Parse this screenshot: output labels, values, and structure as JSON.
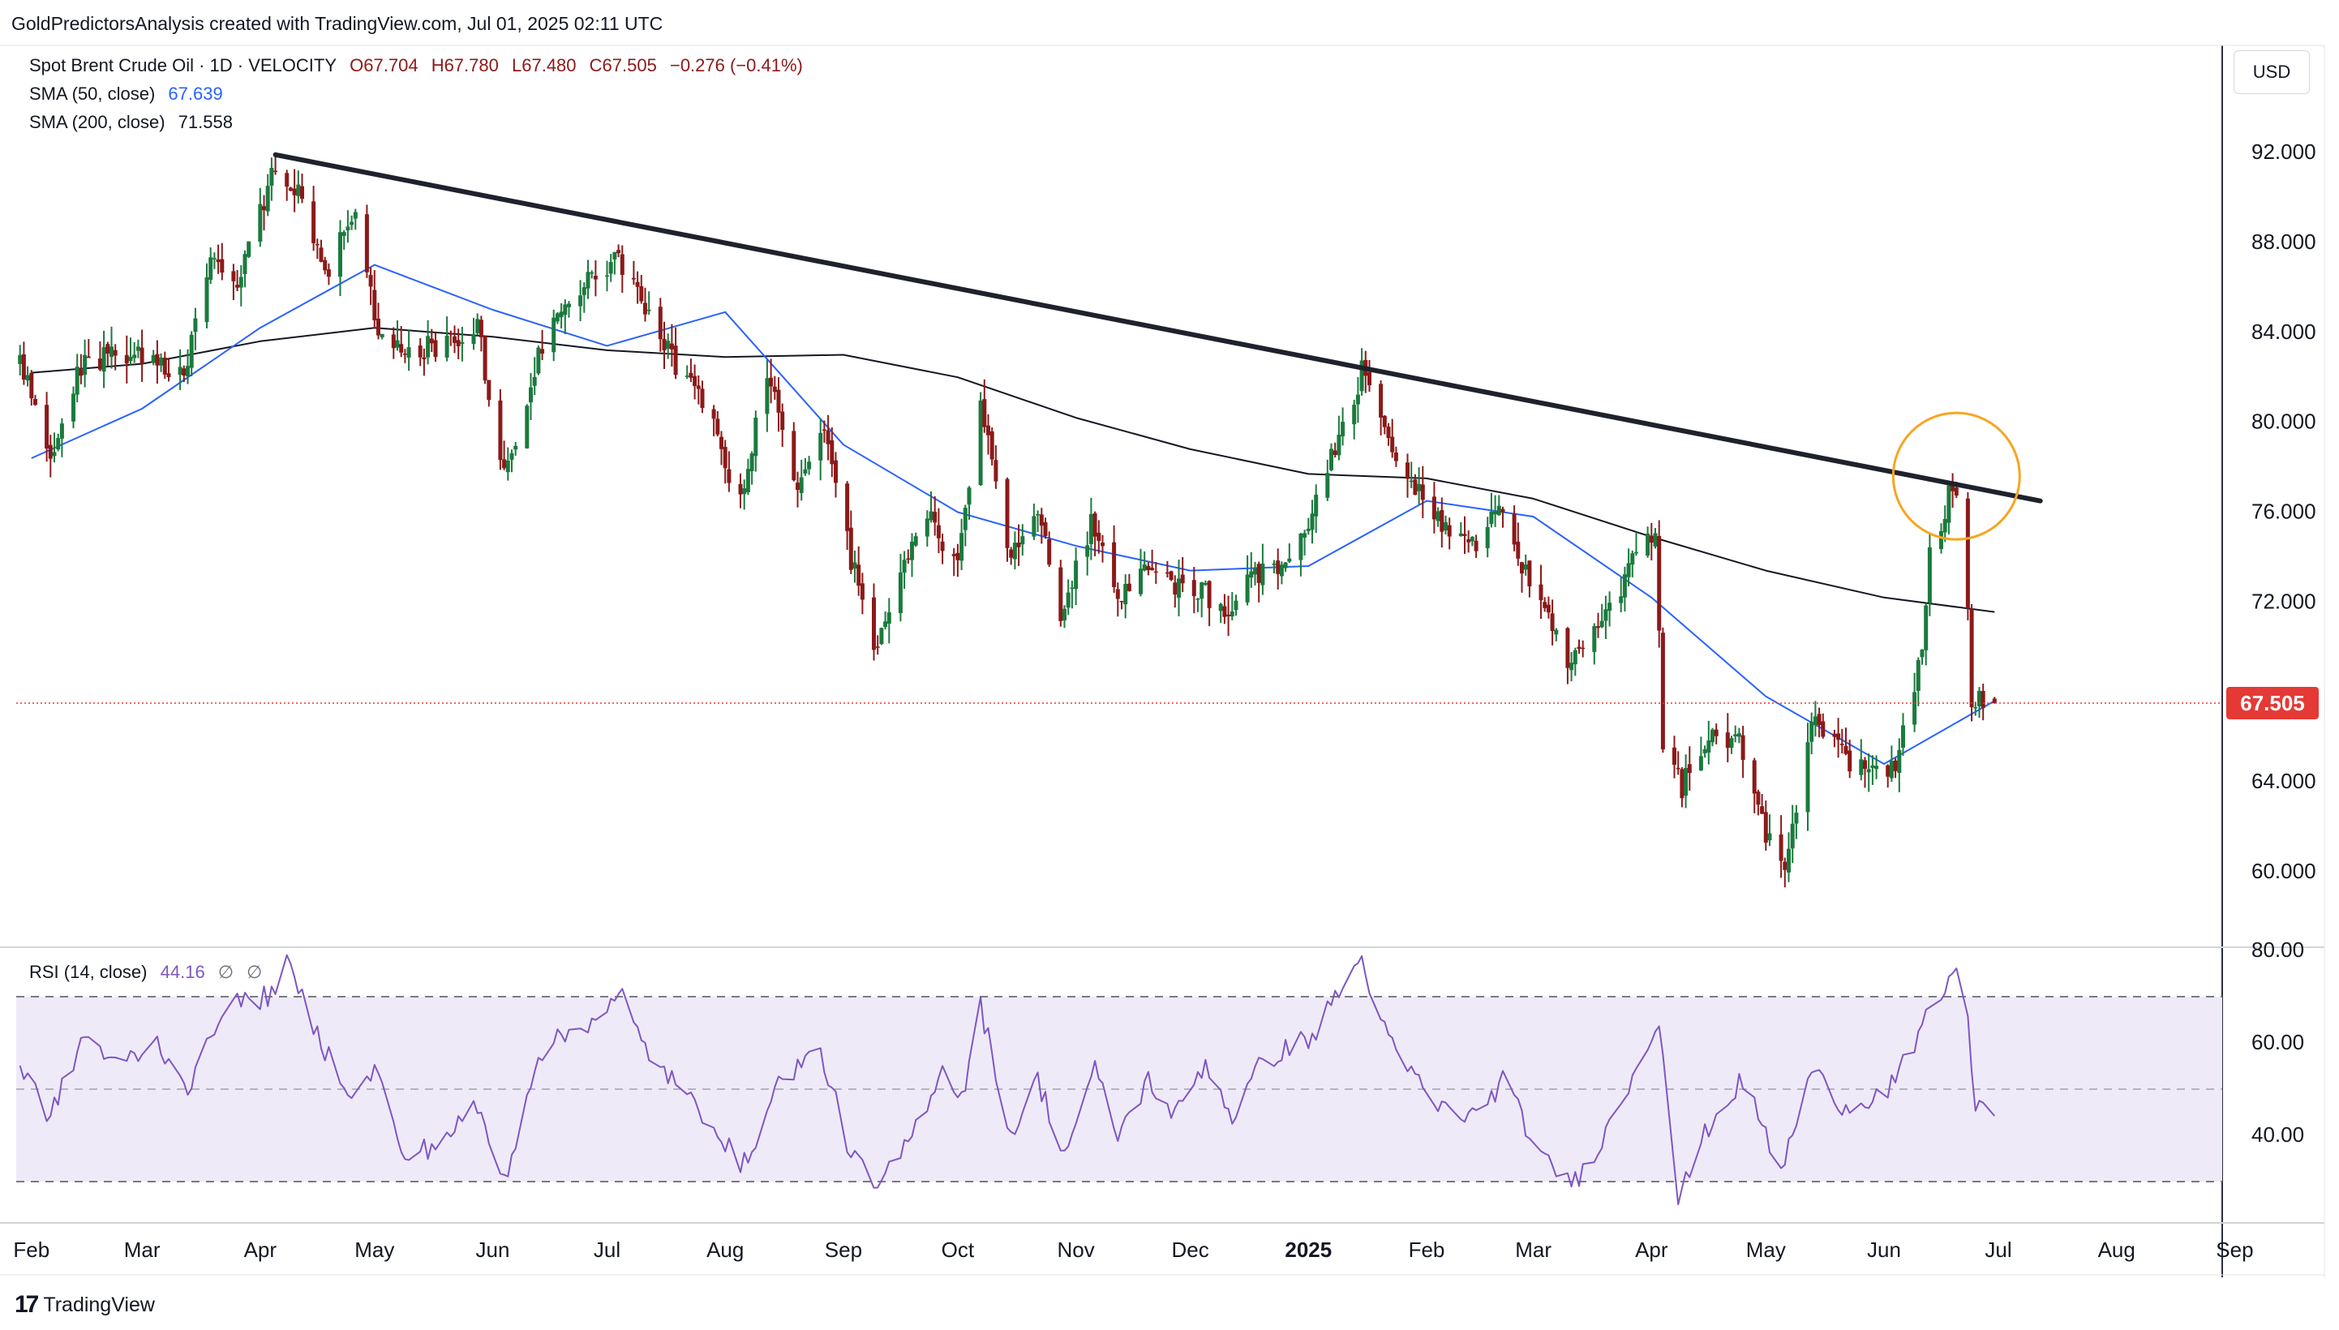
{
  "header": {
    "attribution": "GoldPredictorsAnalysis created with TradingView.com, Jul 01, 2025 02:11 UTC"
  },
  "legend": {
    "symbol": "Spot Brent Crude Oil · 1D · VELOCITY",
    "open": "O67.704",
    "high": "H67.780",
    "low": "L67.480",
    "close": "C67.505",
    "change": "−0.276 (−0.41%)",
    "sma50_label": "SMA (50, close)",
    "sma50_value": "67.639",
    "sma200_label": "SMA (200, close)",
    "sma200_value": "71.558",
    "rsi_label": "RSI (14, close)",
    "rsi_value": "44.16",
    "rsi_na1": "∅",
    "rsi_na2": "∅"
  },
  "currency_button": "USD",
  "branding": "TradingView",
  "colors": {
    "up": "#1b7a3e",
    "down": "#8b1a1a",
    "sma50": "#2962ff",
    "sma200": "#131722",
    "trendline": "#1e222d",
    "circle": "#f5a623",
    "rsi": "#7e57c2",
    "rsi_band": "#efeaf8",
    "last_price": "#e53935"
  },
  "chart_data": [
    {
      "type": "candlestick",
      "title": "",
      "x_ticks": [
        "Feb",
        "Mar",
        "Apr",
        "May",
        "Jun",
        "Jul",
        "Aug",
        "Sep",
        "Oct",
        "Nov",
        "Dec",
        "2025",
        "Feb",
        "Mar",
        "Apr",
        "May",
        "Jun",
        "Jul",
        "Aug",
        "Sep"
      ],
      "y_ticks": [
        "92.000",
        "88.000",
        "84.000",
        "80.000",
        "76.000",
        "72.000",
        "64.000",
        "60.000"
      ],
      "y_range": [
        58,
        95
      ],
      "last_price": 67.505,
      "last_price_label": "67.505",
      "trendline": {
        "from": [
          "2024-04-05",
          91.9
        ],
        "to": [
          "2025-07-12",
          76.5
        ]
      },
      "highlight_circle": {
        "center": [
          "2025-06-20",
          77.6
        ],
        "note": "spike above trendline"
      },
      "series": [
        {
          "name": "Spot Brent Crude Oil",
          "anchor_closes": [
            [
              "2024-01-29",
              82.5
            ],
            [
              "2024-02-07",
              78.3
            ],
            [
              "2024-02-13",
              82.4
            ],
            [
              "2024-02-22",
              83.0
            ],
            [
              "2024-03-04",
              82.8
            ],
            [
              "2024-03-12",
              81.9
            ],
            [
              "2024-03-19",
              87.0
            ],
            [
              "2024-03-26",
              86.0
            ],
            [
              "2024-04-04",
              90.9
            ],
            [
              "2024-04-12",
              90.4
            ],
            [
              "2024-04-18",
              86.6
            ],
            [
              "2024-04-26",
              89.5
            ],
            [
              "2024-05-02",
              83.6
            ],
            [
              "2024-05-10",
              83.0
            ],
            [
              "2024-05-20",
              83.6
            ],
            [
              "2024-05-28",
              84.2
            ],
            [
              "2024-06-04",
              77.6
            ],
            [
              "2024-06-12",
              82.5
            ],
            [
              "2024-06-20",
              85.7
            ],
            [
              "2024-06-28",
              86.4
            ],
            [
              "2024-07-04",
              87.4
            ],
            [
              "2024-07-12",
              85.0
            ],
            [
              "2024-07-19",
              82.6
            ],
            [
              "2024-07-26",
              81.1
            ],
            [
              "2024-08-05",
              76.3
            ],
            [
              "2024-08-12",
              82.3
            ],
            [
              "2024-08-20",
              77.3
            ],
            [
              "2024-08-27",
              79.5
            ],
            [
              "2024-09-03",
              73.8
            ],
            [
              "2024-09-10",
              69.8
            ],
            [
              "2024-09-17",
              73.8
            ],
            [
              "2024-09-24",
              75.5
            ],
            [
              "2024-10-01",
              73.8
            ],
            [
              "2024-10-07",
              80.9
            ],
            [
              "2024-10-14",
              74.3
            ],
            [
              "2024-10-22",
              76.0
            ],
            [
              "2024-10-28",
              71.4
            ],
            [
              "2024-11-05",
              75.5
            ],
            [
              "2024-11-12",
              72.3
            ],
            [
              "2024-11-19",
              73.3
            ],
            [
              "2024-11-26",
              72.8
            ],
            [
              "2024-12-04",
              72.5
            ],
            [
              "2024-12-10",
              71.3
            ],
            [
              "2024-12-17",
              73.4
            ],
            [
              "2024-12-26",
              73.3
            ],
            [
              "2025-01-03",
              76.5
            ],
            [
              "2025-01-10",
              79.8
            ],
            [
              "2025-01-15",
              82.2
            ],
            [
              "2025-01-23",
              78.3
            ],
            [
              "2025-01-31",
              76.8
            ],
            [
              "2025-02-06",
              75.4
            ],
            [
              "2025-02-14",
              74.8
            ],
            [
              "2025-02-20",
              76.0
            ],
            [
              "2025-03-03",
              71.6
            ],
            [
              "2025-03-10",
              69.5
            ],
            [
              "2025-03-18",
              70.6
            ],
            [
              "2025-03-26",
              73.5
            ],
            [
              "2025-04-02",
              74.9
            ],
            [
              "2025-04-04",
              65.6
            ],
            [
              "2025-04-09",
              63.8
            ],
            [
              "2025-04-16",
              66.0
            ],
            [
              "2025-04-24",
              66.1
            ],
            [
              "2025-05-01",
              61.8
            ],
            [
              "2025-05-06",
              60.5
            ],
            [
              "2025-05-13",
              66.6
            ],
            [
              "2025-05-20",
              65.4
            ],
            [
              "2025-05-28",
              64.3
            ],
            [
              "2025-06-04",
              64.8
            ],
            [
              "2025-06-11",
              69.9
            ],
            [
              "2025-06-13",
              74.2
            ],
            [
              "2025-06-18",
              76.7
            ],
            [
              "2025-06-20",
              77.0
            ],
            [
              "2025-06-23",
              71.5
            ],
            [
              "2025-06-24",
              67.1
            ],
            [
              "2025-06-27",
              67.7
            ],
            [
              "2025-06-30",
              67.5
            ]
          ]
        },
        {
          "name": "SMA (50, close)",
          "values": [
            [
              "2024-02-01",
              78.4
            ],
            [
              "2024-03-01",
              80.6
            ],
            [
              "2024-04-01",
              84.2
            ],
            [
              "2024-05-01",
              87.0
            ],
            [
              "2024-06-01",
              85.0
            ],
            [
              "2024-07-01",
              83.4
            ],
            [
              "2024-08-01",
              84.9
            ],
            [
              "2024-09-01",
              79.0
            ],
            [
              "2024-10-01",
              76.0
            ],
            [
              "2024-11-01",
              74.5
            ],
            [
              "2024-12-01",
              73.4
            ],
            [
              "2025-01-01",
              73.6
            ],
            [
              "2025-02-01",
              76.5
            ],
            [
              "2025-03-01",
              75.8
            ],
            [
              "2025-04-01",
              72.2
            ],
            [
              "2025-05-01",
              67.8
            ],
            [
              "2025-06-01",
              64.8
            ],
            [
              "2025-06-30",
              67.6
            ]
          ]
        },
        {
          "name": "SMA (200, close)",
          "values": [
            [
              "2024-02-01",
              82.2
            ],
            [
              "2024-03-01",
              82.6
            ],
            [
              "2024-04-01",
              83.6
            ],
            [
              "2024-05-01",
              84.2
            ],
            [
              "2024-06-01",
              83.8
            ],
            [
              "2024-07-01",
              83.2
            ],
            [
              "2024-08-01",
              82.9
            ],
            [
              "2024-09-01",
              83.0
            ],
            [
              "2024-10-01",
              82.0
            ],
            [
              "2024-11-01",
              80.2
            ],
            [
              "2024-12-01",
              78.8
            ],
            [
              "2025-01-01",
              77.7
            ],
            [
              "2025-02-01",
              77.5
            ],
            [
              "2025-03-01",
              76.6
            ],
            [
              "2025-04-01",
              74.9
            ],
            [
              "2025-05-01",
              73.4
            ],
            [
              "2025-06-01",
              72.2
            ],
            [
              "2025-06-30",
              71.56
            ]
          ]
        }
      ]
    },
    {
      "type": "line",
      "title": "",
      "y_ticks": [
        "80.00",
        "60.00",
        "40.00"
      ],
      "y_range": [
        24,
        80
      ],
      "bands": {
        "upper": 70,
        "middle": 50,
        "lower": 30
      },
      "series": [
        {
          "name": "RSI (14, close)",
          "values": [
            [
              "2024-01-29",
              55
            ],
            [
              "2024-02-06",
              44
            ],
            [
              "2024-02-15",
              62
            ],
            [
              "2024-02-23",
              55
            ],
            [
              "2024-03-05",
              60
            ],
            [
              "2024-03-14",
              50
            ],
            [
              "2024-03-22",
              68
            ],
            [
              "2024-04-03",
              70
            ],
            [
              "2024-04-08",
              77
            ],
            [
              "2024-04-17",
              60
            ],
            [
              "2024-04-26",
              48
            ],
            [
              "2024-05-02",
              55
            ],
            [
              "2024-05-08",
              35
            ],
            [
              "2024-05-17",
              38
            ],
            [
              "2024-05-28",
              46
            ],
            [
              "2024-06-04",
              30
            ],
            [
              "2024-06-13",
              58
            ],
            [
              "2024-06-25",
              64
            ],
            [
              "2024-07-05",
              70
            ],
            [
              "2024-07-10",
              60
            ],
            [
              "2024-07-22",
              48
            ],
            [
              "2024-07-30",
              42
            ],
            [
              "2024-08-05",
              32
            ],
            [
              "2024-08-16",
              53
            ],
            [
              "2024-08-26",
              58
            ],
            [
              "2024-09-03",
              36
            ],
            [
              "2024-09-10",
              28
            ],
            [
              "2024-09-19",
              40
            ],
            [
              "2024-09-27",
              55
            ],
            [
              "2024-10-02",
              48
            ],
            [
              "2024-10-07",
              68
            ],
            [
              "2024-10-15",
              40
            ],
            [
              "2024-10-22",
              52
            ],
            [
              "2024-10-29",
              36
            ],
            [
              "2024-11-06",
              54
            ],
            [
              "2024-11-12",
              40
            ],
            [
              "2024-11-20",
              52
            ],
            [
              "2024-11-27",
              44
            ],
            [
              "2024-12-05",
              56
            ],
            [
              "2024-12-12",
              44
            ],
            [
              "2024-12-20",
              56
            ],
            [
              "2025-01-03",
              62
            ],
            [
              "2025-01-08",
              70
            ],
            [
              "2025-01-15",
              78
            ],
            [
              "2025-01-22",
              60
            ],
            [
              "2025-02-04",
              46
            ],
            [
              "2025-02-14",
              44
            ],
            [
              "2025-02-21",
              52
            ],
            [
              "2025-03-04",
              34
            ],
            [
              "2025-03-12",
              30
            ],
            [
              "2025-03-21",
              42
            ],
            [
              "2025-04-01",
              62
            ],
            [
              "2025-04-03",
              66
            ],
            [
              "2025-04-08",
              26
            ],
            [
              "2025-04-16",
              42
            ],
            [
              "2025-04-25",
              52
            ],
            [
              "2025-05-01",
              40
            ],
            [
              "2025-05-05",
              32
            ],
            [
              "2025-05-13",
              54
            ],
            [
              "2025-05-22",
              46
            ],
            [
              "2025-06-02",
              50
            ],
            [
              "2025-06-10",
              60
            ],
            [
              "2025-06-13",
              68
            ],
            [
              "2025-06-18",
              72
            ],
            [
              "2025-06-20",
              78
            ],
            [
              "2025-06-23",
              64
            ],
            [
              "2025-06-25",
              47
            ],
            [
              "2025-06-30",
              44.2
            ]
          ]
        }
      ]
    }
  ]
}
